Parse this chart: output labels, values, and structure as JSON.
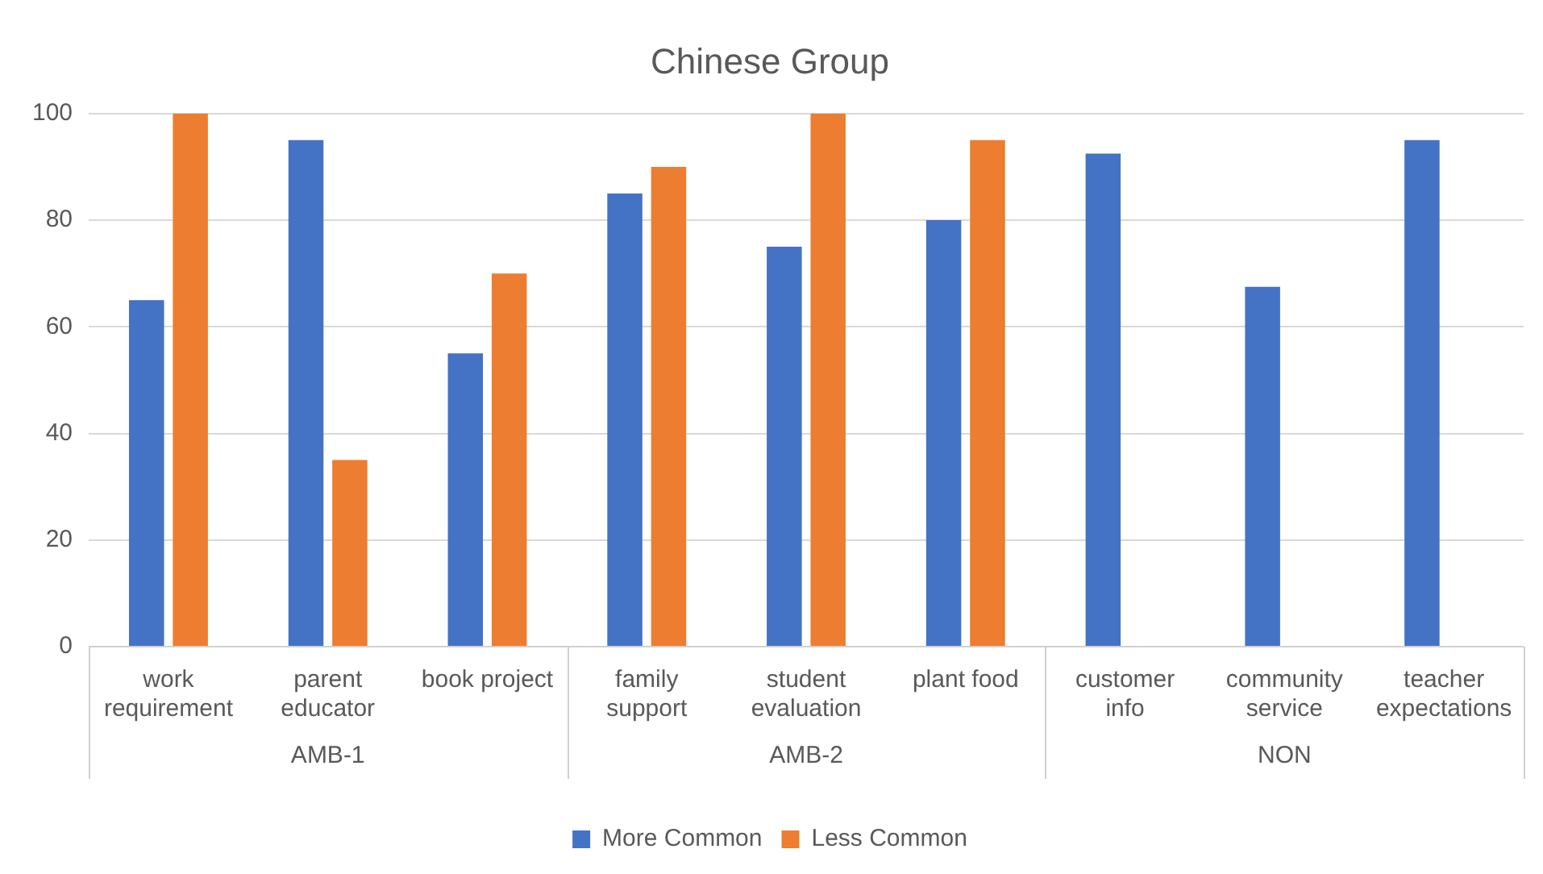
{
  "chart_data": {
    "type": "bar",
    "title": "Chinese Group",
    "categories": [
      "work requirement",
      "parent educator",
      "book project",
      "family support",
      "student evaluation",
      "plant food",
      "customer info",
      "community service",
      "teacher expectations"
    ],
    "series": [
      {
        "name": "More Common",
        "color": "#4472c4",
        "values": [
          65,
          95,
          55,
          85,
          75,
          80,
          92.5,
          67.5,
          95
        ]
      },
      {
        "name": "Less Common",
        "color": "#ed7d31",
        "values": [
          100,
          35,
          70,
          90,
          100,
          95,
          null,
          null,
          null
        ]
      }
    ],
    "ylim": [
      0,
      100
    ],
    "yticks": [
      0,
      20,
      40,
      60,
      80,
      100
    ],
    "grid": "y",
    "legend": "bottom",
    "annotations": [
      "AMB-1",
      "AMB-2",
      "NON"
    ]
  }
}
